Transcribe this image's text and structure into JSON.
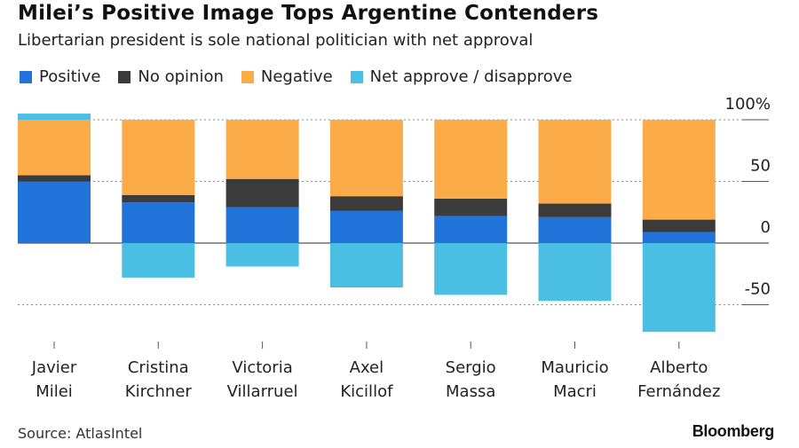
{
  "header": {
    "title": "Milei’s Positive Image Tops Argentine Contenders",
    "subtitle": "Libertarian president is sole national politician with net approval"
  },
  "footer": {
    "source": "Source: AtlasIntel",
    "brand": "Bloomberg"
  },
  "colors": {
    "positive": "#2172d9",
    "no_opinion": "#3b3b3b",
    "negative": "#fbab48",
    "net": "#4bbfe3",
    "grid": "#8a8a8a",
    "axis": "#555555"
  },
  "chart_data": {
    "type": "bar",
    "stacked": true,
    "title": "Milei’s Positive Image Tops Argentine Contenders",
    "subtitle": "Libertarian president is sole national politician with net approval",
    "ylim": [
      -75,
      100
    ],
    "yticks": [
      100,
      50,
      0,
      -50
    ],
    "ytick_labels": [
      "100%",
      "50",
      "0",
      "-50"
    ],
    "y_axis_position": "right",
    "grid": true,
    "legend_position": "top-left",
    "categories": [
      [
        "Javier",
        "Milei"
      ],
      [
        "Cristina",
        "Kirchner"
      ],
      [
        "Victoria",
        "Villarruel"
      ],
      [
        "Axel",
        "Kicillof"
      ],
      [
        "Sergio",
        "Massa"
      ],
      [
        "Mauricio",
        "Macri"
      ],
      [
        "Alberto",
        "Fernández"
      ]
    ],
    "series": [
      {
        "name": "Positive",
        "key": "positive",
        "values": [
          50,
          33,
          29,
          26,
          22,
          21,
          9
        ]
      },
      {
        "name": "No opinion",
        "key": "no_opinion",
        "values": [
          5,
          6,
          23,
          12,
          14,
          11,
          10
        ]
      },
      {
        "name": "Negative",
        "key": "negative",
        "values": [
          45,
          61,
          48,
          62,
          64,
          68,
          81
        ]
      },
      {
        "name": "Net approve / disapprove",
        "key": "net",
        "values": [
          5,
          -28,
          -19,
          -36,
          -42,
          -47,
          -72
        ]
      }
    ]
  }
}
